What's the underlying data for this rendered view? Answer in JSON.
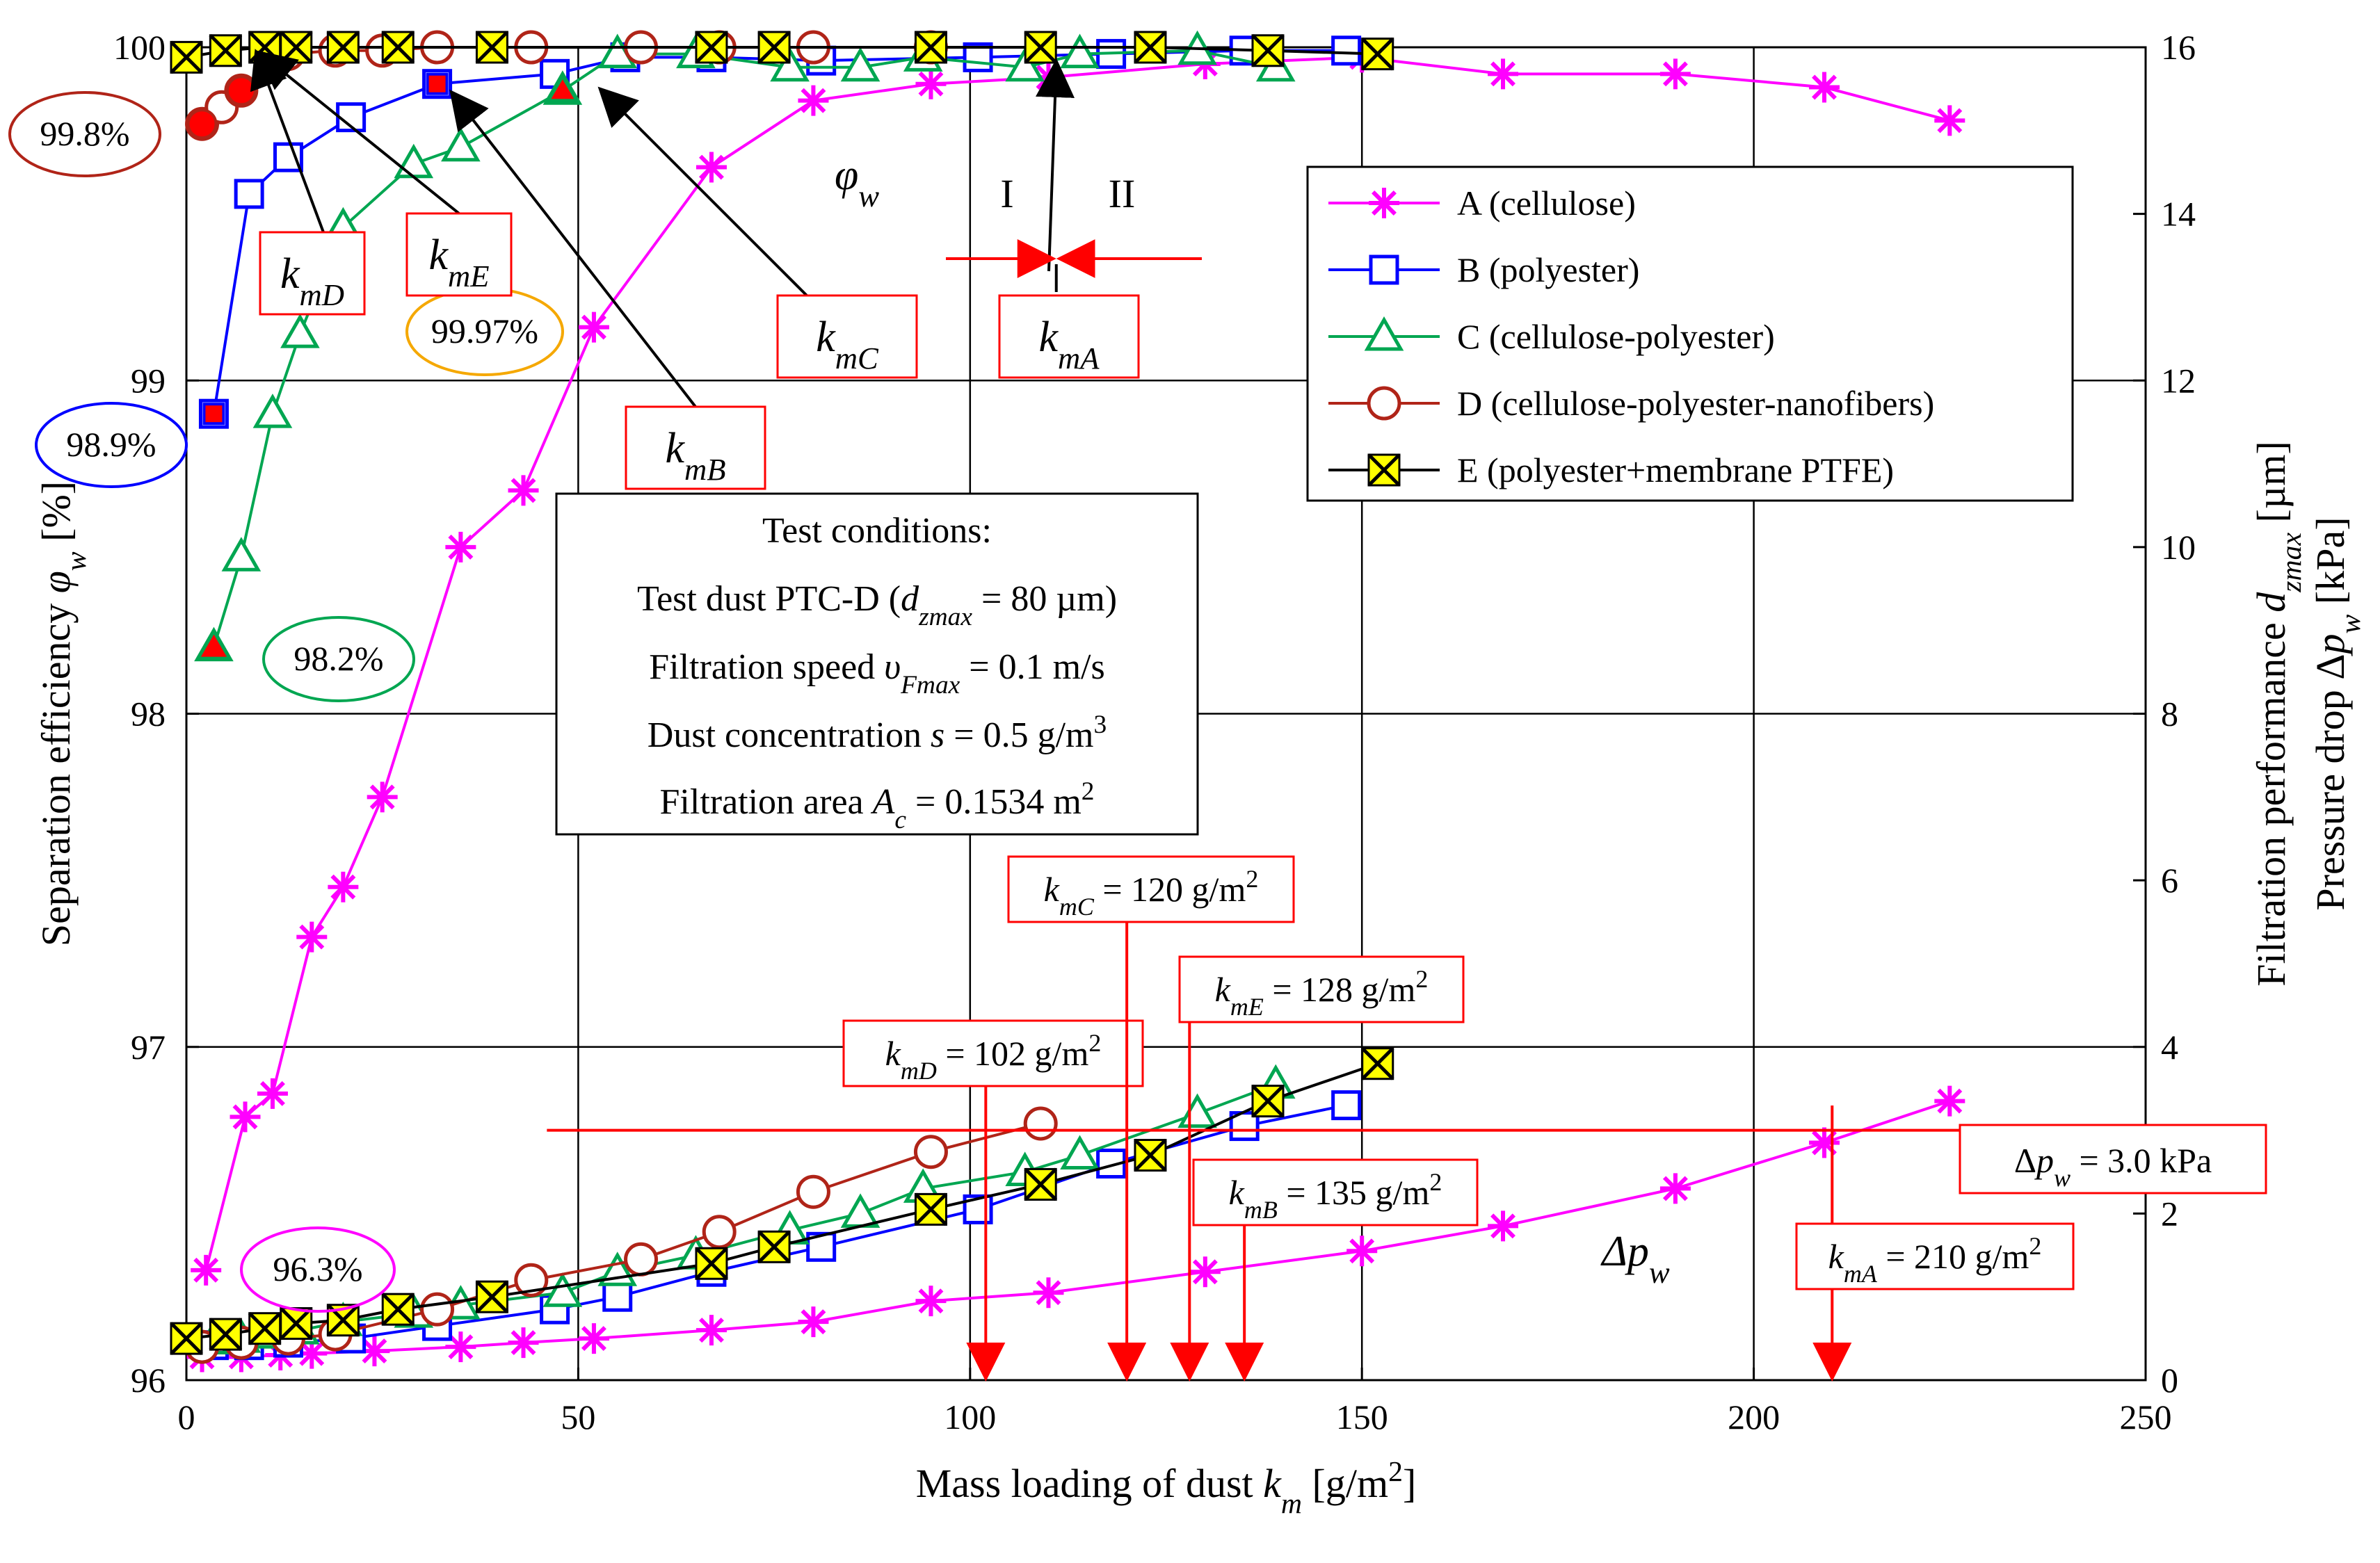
{
  "chart_data": {
    "type": "line",
    "xlabel": "Mass loading of dust k_m [g/m²]",
    "ylabel_left": "Separation efficiency φ_w [%]",
    "ylabel_right_1": "Filtration performance d_zmax [µm]",
    "ylabel_right_2": "Pressure drop Δp_w [kPa]",
    "xlim": [
      0,
      250
    ],
    "ylim_left": [
      96,
      100
    ],
    "ylim_right": [
      0,
      16
    ],
    "x_ticks": [
      0,
      50,
      100,
      150,
      200,
      250
    ],
    "y_left_ticks": [
      96,
      97,
      98,
      99,
      100
    ],
    "y_right_ticks": [
      0,
      2,
      4,
      6,
      8,
      10,
      12,
      14,
      16
    ],
    "grid": true,
    "legend_position": "top-right",
    "series": [
      {
        "name": "A (cellulose)",
        "color": "#ff00ff",
        "marker": "star",
        "efficiency": {
          "x": [
            2.5,
            7.5,
            11,
            16,
            20,
            25,
            35,
            43,
            52,
            67,
            80,
            95,
            110,
            130,
            150,
            168,
            190,
            209,
            225
          ],
          "y": [
            96.33,
            96.79,
            96.86,
            97.33,
            97.48,
            97.75,
            98.5,
            98.67,
            99.16,
            99.64,
            99.84,
            99.89,
            99.91,
            99.95,
            99.97,
            99.92,
            99.92,
            99.88,
            99.78
          ]
        },
        "pressure_drop": {
          "x": [
            2,
            7,
            12,
            16,
            24,
            35,
            43,
            52,
            67,
            80,
            95,
            110,
            130,
            150,
            168,
            190,
            209,
            225
          ],
          "y": [
            0.28,
            0.28,
            0.3,
            0.32,
            0.35,
            0.4,
            0.45,
            0.5,
            0.6,
            0.7,
            0.95,
            1.05,
            1.3,
            1.55,
            1.85,
            2.3,
            2.85,
            3.35
          ]
        }
      },
      {
        "name": "B (polyester)",
        "color": "#0000ff",
        "marker": "square",
        "efficiency": {
          "x": [
            3.5,
            8,
            13,
            21,
            32,
            47,
            56,
            67,
            81,
            101,
            118,
            135,
            148
          ],
          "y": [
            98.9,
            99.56,
            99.67,
            99.79,
            99.89,
            99.92,
            99.97,
            99.97,
            99.96,
            99.97,
            99.98,
            99.99,
            99.99
          ]
        },
        "pressure_drop": {
          "x": [
            3.5,
            8,
            13,
            21,
            32,
            47,
            55,
            67,
            81,
            101,
            118,
            135,
            148
          ],
          "y": [
            0.42,
            0.42,
            0.45,
            0.5,
            0.65,
            0.85,
            1.0,
            1.3,
            1.6,
            2.05,
            2.6,
            3.05,
            3.3
          ]
        },
        "initial_value_label": "98.9%",
        "label_color": "#0000ff"
      },
      {
        "name": "C (cellulose-polyester)",
        "color": "#00a651",
        "marker": "triangle",
        "efficiency": {
          "x": [
            3.5,
            7,
            11,
            14.5,
            20,
            29,
            35,
            48,
            55,
            65,
            77,
            86,
            94,
            107,
            114,
            129,
            139
          ],
          "y": [
            98.2,
            98.47,
            98.9,
            99.14,
            99.46,
            99.65,
            99.7,
            99.87,
            99.98,
            99.98,
            99.94,
            99.94,
            99.97,
            99.94,
            99.98,
            99.99,
            99.94
          ]
        },
        "pressure_drop": {
          "x": [
            3.5,
            7,
            11,
            14.5,
            20,
            29,
            35,
            48,
            55,
            65,
            77,
            86,
            94,
            107,
            114,
            129,
            139
          ],
          "y": [
            0.48,
            0.5,
            0.55,
            0.6,
            0.7,
            0.8,
            0.9,
            1.05,
            1.3,
            1.5,
            1.8,
            2.0,
            2.3,
            2.5,
            2.7,
            3.2,
            3.55
          ]
        },
        "initial_value_label": "98.2%",
        "label_color": "#00a651"
      },
      {
        "name": "D (cellulose-polyester-nanofibers)",
        "color": "#b02418",
        "marker": "circle",
        "efficiency": {
          "x": [
            2,
            4.5,
            7,
            13,
            19,
            25,
            32,
            44,
            58,
            68,
            80,
            95
          ],
          "y": [
            99.77,
            99.82,
            99.87,
            99.98,
            99.99,
            99.99,
            100.0,
            100.0,
            100.0,
            100.0,
            100.0,
            100.0
          ]
        },
        "pressure_drop": {
          "x": [
            2,
            7,
            13,
            19,
            32,
            44,
            58,
            68,
            80,
            95,
            109
          ],
          "y": [
            0.4,
            0.45,
            0.5,
            0.55,
            0.85,
            1.2,
            1.45,
            1.78,
            2.26,
            2.74,
            3.08
          ]
        },
        "initial_value_label": "99.8%",
        "label_color": "#b02418"
      },
      {
        "name": "E (polyester+membrane PTFE)",
        "color": "#000000",
        "marker_fill": "#ffff00",
        "marker": "x-box",
        "efficiency": {
          "x": [
            0,
            5,
            10,
            14,
            20,
            27,
            39,
            67,
            75,
            95,
            109,
            123,
            138,
            152
          ],
          "y": [
            99.97,
            99.99,
            100.0,
            100.0,
            100.0,
            100.0,
            100.0,
            100.0,
            100.0,
            100.0,
            100.0,
            100.0,
            99.99,
            99.98
          ]
        },
        "pressure_drop": {
          "x": [
            0,
            5,
            10,
            14,
            20,
            27,
            39,
            67,
            75,
            95,
            109,
            123,
            138,
            152
          ],
          "y": [
            0.5,
            0.55,
            0.62,
            0.68,
            0.72,
            0.85,
            1.0,
            1.4,
            1.6,
            2.05,
            2.35,
            2.7,
            3.35,
            3.8
          ]
        },
        "initial_value_label": "99.97%",
        "label_color": "#f5a800"
      }
    ],
    "annotations": {
      "phi_label": "φw",
      "dp_label": "Δpw",
      "region_I": "I",
      "region_II": "II",
      "threshold_label": "Δpw = 3.0 kPa",
      "threshold_value": 3.0,
      "initial_A_label": "96.3%",
      "initial_A_color": "#ff00ff",
      "pointer_labels": {
        "kmA": "kmA",
        "kmB": "kmB",
        "kmC": "kmC",
        "kmD": "kmD",
        "kmE": "kmE"
      },
      "km_values": [
        {
          "key": "kmD",
          "label": "kmD = 102 g/m²",
          "x": 102
        },
        {
          "key": "kmC",
          "label": "kmC = 120 g/m²",
          "x": 120
        },
        {
          "key": "kmE",
          "label": "kmE = 128 g/m²",
          "x": 128
        },
        {
          "key": "kmB",
          "label": "kmB = 135 g/m²",
          "x": 135
        },
        {
          "key": "kmA",
          "label": "kmA = 210 g/m²",
          "x": 210
        }
      ]
    },
    "test_conditions": {
      "title": "Test conditions:",
      "dust": "Test dust PTC-D (dzmax = 80 µm)",
      "speed": "Filtration speed υFmax = 0.1 m/s",
      "concentration": "Dust concentration s = 0.5 g/m³",
      "area": "Filtration area Ac = 0.1534 m²"
    }
  }
}
